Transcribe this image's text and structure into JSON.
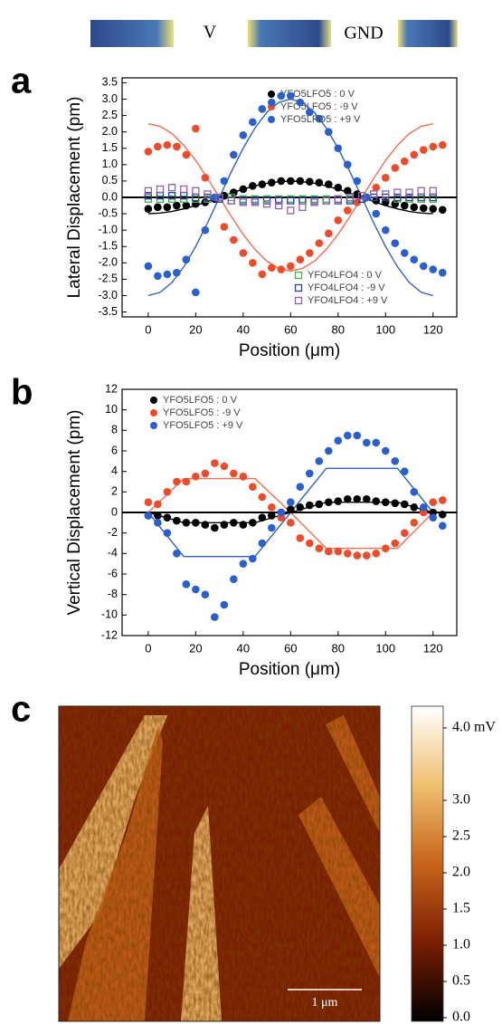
{
  "header": {
    "left": "V",
    "right": "GND"
  },
  "chart_data": [
    {
      "type": "scatter",
      "panel_label": "a",
      "xlabel": "Position (μm)",
      "ylabel": "Lateral Displacement (pm)",
      "xlim": [
        -11,
        130
      ],
      "ylim": [
        -3.65,
        3.65
      ],
      "xticks": [
        0,
        20,
        40,
        60,
        80,
        100,
        120
      ],
      "yticks": [
        3.5,
        {
          "value": 3,
          "label": "3.0"
        },
        2.5,
        {
          "value": 2,
          "label": "2.0"
        },
        1.5,
        {
          "value": 1,
          "label": "1.0"
        },
        0.5,
        {
          "value": 0,
          "label": "0.0"
        },
        -0.5,
        {
          "value": -1,
          "label": "-1.0"
        },
        -1.5,
        {
          "value": -2,
          "label": "-2.0"
        },
        -2.5,
        {
          "value": -3,
          "label": "-3.0"
        },
        -3.5
      ],
      "series": [
        {
          "name": "YFO5LFO5 : 0 V",
          "color": "#000000",
          "marker": "o",
          "legend": "upper right",
          "x": [
            0,
            4,
            8,
            12,
            16,
            20,
            24,
            28,
            32,
            36,
            40,
            44,
            48,
            52,
            56,
            60,
            64,
            68,
            72,
            76,
            80,
            84,
            88,
            92,
            96,
            100,
            104,
            108,
            112,
            116,
            120,
            124
          ],
          "values": [
            -0.35,
            -0.3,
            -0.3,
            -0.25,
            -0.25,
            -0.2,
            -0.15,
            -0.05,
            0.05,
            0.15,
            0.25,
            0.35,
            0.4,
            0.45,
            0.5,
            0.5,
            0.5,
            0.48,
            0.45,
            0.4,
            0.3,
            0.2,
            0.1,
            0,
            -0.1,
            -0.15,
            -0.2,
            -0.25,
            -0.3,
            -0.33,
            -0.35,
            -0.38
          ]
        },
        {
          "name": "YFO5LFO5 : -9 V",
          "color": "#f04a2a",
          "marker": "o",
          "legend": "upper right",
          "x": [
            0,
            4,
            8,
            12,
            16,
            20,
            24,
            28,
            32,
            36,
            40,
            44,
            48,
            52,
            56,
            60,
            64,
            68,
            72,
            76,
            80,
            84,
            88,
            92,
            96,
            100,
            104,
            108,
            112,
            116,
            120,
            124
          ],
          "values": [
            1.4,
            1.55,
            1.6,
            1.55,
            1.3,
            2.1,
            0.6,
            0,
            -0.9,
            -1.3,
            -1.7,
            -2,
            -2.35,
            -2.15,
            -2.2,
            -2.1,
            -1.9,
            -1.7,
            -1.4,
            -1.1,
            -0.7,
            -0.4,
            -0.15,
            0,
            0.3,
            0.6,
            0.9,
            1.1,
            1.3,
            1.45,
            1.55,
            1.6
          ]
        },
        {
          "name": "YFO5LFO5 : +9 V",
          "color": "#2a5fd0",
          "marker": "o",
          "legend": "upper right",
          "x": [
            0,
            4,
            8,
            12,
            16,
            20,
            24,
            28,
            32,
            36,
            40,
            44,
            48,
            52,
            56,
            60,
            64,
            68,
            72,
            76,
            80,
            84,
            88,
            92,
            96,
            100,
            104,
            108,
            112,
            116,
            120,
            124
          ],
          "values": [
            -2.1,
            -2.4,
            -2.35,
            -2.3,
            -1.9,
            -2.9,
            -1,
            0,
            0.5,
            1.3,
            1.9,
            2.3,
            2.7,
            2.9,
            3.1,
            3.1,
            2.9,
            2.6,
            2.4,
            2,
            1.5,
            1,
            0.5,
            0,
            -0.5,
            -1,
            -1.4,
            -1.7,
            -1.9,
            -2.1,
            -2.2,
            -2.3
          ]
        },
        {
          "name": "YFO4LFO4 : 0 V",
          "color": "#3cb44a",
          "marker": "s",
          "legend": "lower right",
          "x": [
            0,
            5,
            10,
            15,
            20,
            25,
            30,
            35,
            40,
            45,
            50,
            55,
            60,
            65,
            70,
            75,
            80,
            85,
            90,
            95,
            100,
            105,
            110,
            115,
            120
          ],
          "values": [
            -0.05,
            -0.05,
            -0.05,
            -0.05,
            -0.05,
            -0.05,
            0,
            0,
            -0.05,
            -0.05,
            -0.05,
            -0.05,
            -0.05,
            -0.05,
            -0.05,
            -0.05,
            -0.05,
            -0.05,
            -0.05,
            0,
            0,
            -0.05,
            -0.05,
            -0.05,
            -0.05
          ]
        },
        {
          "name": "YFO4LFO4 : -9 V",
          "color": "#2a3f9a",
          "marker": "s",
          "legend": "lower right",
          "x": [
            0,
            5,
            10,
            15,
            20,
            25,
            30,
            35,
            40,
            45,
            50,
            55,
            60,
            65,
            70,
            75,
            80,
            85,
            90,
            95,
            100,
            105,
            110,
            115,
            120
          ],
          "values": [
            0.05,
            0.05,
            0.05,
            0.05,
            0,
            0,
            -0.05,
            -0.1,
            -0.1,
            -0.1,
            -0.1,
            -0.1,
            -0.1,
            -0.1,
            -0.1,
            -0.1,
            -0.1,
            -0.1,
            -0.05,
            0,
            0,
            0,
            0,
            0,
            0
          ]
        },
        {
          "name": "YFO4LFO4 : +9 V",
          "color": "#9060b0",
          "marker": "s",
          "legend": "lower right",
          "x": [
            0,
            5,
            10,
            15,
            20,
            25,
            30,
            35,
            40,
            45,
            50,
            55,
            60,
            65,
            70,
            75,
            80,
            85,
            90,
            95,
            100,
            105,
            110,
            115,
            120
          ],
          "values": [
            0.2,
            0.25,
            0.3,
            0.25,
            0.2,
            0.1,
            0,
            -0.1,
            -0.15,
            -0.15,
            -0.2,
            -0.25,
            -0.4,
            -0.3,
            -0.15,
            -0.1,
            -0.05,
            0,
            0.05,
            0.1,
            0.1,
            0.15,
            0.15,
            0.2,
            0.2
          ]
        }
      ],
      "fits": [
        {
          "color": "#000000",
          "x": [
            0,
            5,
            10,
            15,
            20,
            25,
            30,
            35,
            40,
            45,
            50,
            55,
            60,
            65,
            70,
            75,
            80,
            85,
            90,
            95,
            100,
            105,
            110,
            115,
            120
          ],
          "values": [
            -0.5,
            -0.48,
            -0.43,
            -0.35,
            -0.25,
            -0.13,
            0,
            0.13,
            0.25,
            0.35,
            0.43,
            0.48,
            0.5,
            0.48,
            0.43,
            0.35,
            0.25,
            0.13,
            0,
            -0.13,
            -0.25,
            -0.35,
            -0.43,
            -0.48,
            -0.5
          ]
        },
        {
          "color": "#f07050",
          "x": [
            0,
            5,
            10,
            15,
            20,
            25,
            30,
            35,
            40,
            45,
            50,
            55,
            60,
            65,
            70,
            75,
            80,
            85,
            90,
            95,
            100,
            105,
            110,
            115,
            120
          ],
          "values": [
            2.25,
            2.17,
            1.95,
            1.59,
            1.13,
            0.58,
            0,
            -0.58,
            -1.13,
            -1.59,
            -1.95,
            -2.17,
            -2.25,
            -2.17,
            -1.95,
            -1.59,
            -1.13,
            -0.58,
            0,
            0.58,
            1.13,
            1.59,
            1.95,
            2.17,
            2.25
          ]
        },
        {
          "color": "#3060c8",
          "x": [
            0,
            5,
            10,
            15,
            20,
            25,
            30,
            35,
            40,
            45,
            50,
            55,
            60,
            65,
            70,
            75,
            80,
            85,
            90,
            95,
            100,
            105,
            110,
            115,
            120
          ],
          "values": [
            -3,
            -2.9,
            -2.6,
            -2.12,
            -1.5,
            -0.78,
            0,
            0.78,
            1.5,
            2.12,
            2.6,
            2.9,
            3,
            2.9,
            2.6,
            2.12,
            1.5,
            0.78,
            0,
            -0.78,
            -1.5,
            -2.12,
            -2.6,
            -2.9,
            -3
          ]
        }
      ]
    },
    {
      "type": "scatter",
      "panel_label": "b",
      "xlabel": "Position (μm)",
      "ylabel": "Vertical Displacement (pm)",
      "xlim": [
        -11,
        130
      ],
      "ylim": [
        -12,
        12
      ],
      "xticks": [
        0,
        20,
        40,
        60,
        80,
        100,
        120
      ],
      "yticks": [
        12,
        10,
        8,
        6,
        4,
        2,
        0,
        -2,
        -4,
        -6,
        -8,
        -10,
        -12
      ],
      "series": [
        {
          "name": "YFO5LFO5 : 0 V",
          "color": "#000000",
          "marker": "o",
          "legend": "upper left",
          "x": [
            0,
            4,
            8,
            12,
            16,
            20,
            24,
            28,
            32,
            36,
            40,
            44,
            48,
            52,
            56,
            60,
            64,
            68,
            72,
            76,
            80,
            84,
            88,
            92,
            96,
            100,
            104,
            108,
            112,
            116,
            120,
            124
          ],
          "values": [
            -0.3,
            -0.3,
            -0.5,
            -0.8,
            -1,
            -1,
            -1.2,
            -1.5,
            -1.2,
            -1,
            -1.2,
            -1,
            -0.5,
            -0.3,
            0,
            0.3,
            0.5,
            0.7,
            0.8,
            1,
            1.1,
            1.3,
            1.3,
            1.3,
            1.1,
            1,
            0.9,
            0.8,
            0.5,
            0.2,
            0,
            -0.2
          ]
        },
        {
          "name": "YFO5LFO5 : -9 V",
          "color": "#f04a2a",
          "marker": "o",
          "legend": "upper left",
          "x": [
            0,
            4,
            8,
            12,
            16,
            20,
            24,
            28,
            32,
            36,
            40,
            44,
            48,
            52,
            56,
            60,
            64,
            68,
            72,
            76,
            80,
            84,
            88,
            92,
            96,
            100,
            104,
            108,
            112,
            116,
            120,
            124
          ],
          "values": [
            1,
            0.8,
            2,
            3,
            3,
            3.5,
            3.8,
            4.8,
            4.5,
            3.8,
            3.5,
            2.5,
            1.5,
            0.5,
            -0.5,
            -1,
            -2.5,
            -3,
            -3.5,
            -3.8,
            -3.8,
            -4,
            -4.2,
            -4.2,
            -4,
            -3.5,
            -3,
            -2,
            -1,
            0,
            1,
            1.2
          ]
        },
        {
          "name": "YFO5LFO5 : +9 V",
          "color": "#2a5fd0",
          "marker": "o",
          "legend": "upper left",
          "x": [
            0,
            4,
            8,
            12,
            16,
            20,
            24,
            28,
            32,
            36,
            40,
            44,
            48,
            52,
            56,
            60,
            64,
            68,
            72,
            76,
            80,
            84,
            88,
            92,
            96,
            100,
            104,
            108,
            112,
            116,
            120,
            124
          ],
          "values": [
            -0.3,
            -1,
            -2,
            -4,
            -7,
            -7.5,
            -8,
            -10.2,
            -9,
            -6.5,
            -5,
            -4.5,
            -3,
            -1.5,
            0,
            1,
            2.5,
            3.8,
            5,
            6,
            7,
            7.5,
            7.5,
            6.8,
            6.8,
            6,
            5,
            4,
            2,
            0.5,
            -0.5,
            -1.3
          ]
        }
      ],
      "fits": [
        {
          "color": "#000000",
          "x": [
            0,
            15,
            45,
            60,
            75,
            105,
            120
          ],
          "values": [
            0,
            -1,
            -1,
            0,
            1,
            1,
            0
          ]
        },
        {
          "color": "#f07050",
          "x": [
            0,
            15,
            45,
            60,
            75,
            105,
            120
          ],
          "values": [
            0,
            3.3,
            3.3,
            0,
            -3.5,
            -3.5,
            0
          ]
        },
        {
          "color": "#3060c8",
          "x": [
            0,
            15,
            45,
            60,
            75,
            105,
            120
          ],
          "values": [
            0,
            -4.3,
            -4.3,
            0,
            4.3,
            4.3,
            0
          ]
        }
      ]
    },
    {
      "type": "image",
      "panel_label": "c",
      "scale_bar": "1 μm",
      "clim": [
        -0.05,
        4.3
      ],
      "colormap": [
        "#000000",
        "#7a1e02",
        "#c8641c",
        "#f0c070",
        "#ffffff"
      ],
      "colorbar_ticks": [
        {
          "value": 4,
          "label": "4.0 mV"
        },
        {
          "value": 3,
          "label": "3.0"
        },
        2.5,
        {
          "value": 2,
          "label": "2.0"
        },
        1.5,
        {
          "value": 1,
          "label": "1.0"
        },
        0.5,
        {
          "value": 0,
          "label": "0.0"
        }
      ]
    }
  ]
}
